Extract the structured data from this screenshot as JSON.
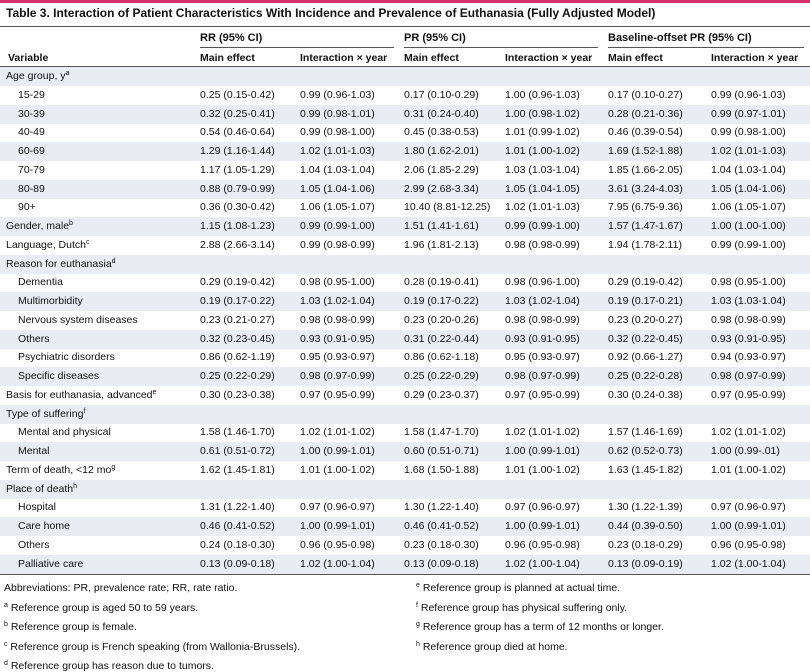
{
  "table": {
    "title": "Table 3. Interaction of Patient Characteristics With Incidence and Prevalence of Euthanasia (Fully Adjusted Model)",
    "variable_header": "Variable",
    "groups": [
      "RR (95% CI)",
      "PR (95% CI)",
      "Baseline-offset PR (95% CI)"
    ],
    "subheaders": [
      "Main effect",
      "Interaction × year",
      "Main effect",
      "Interaction × year",
      "Main effect",
      "Interaction × year"
    ],
    "rows": [
      {
        "label": "Age group, y",
        "note": "a",
        "rows": [
          {
            "label": "15-29",
            "cells": [
              "0.25 (0.15-0.42)",
              "0.99 (0.96-1.03)",
              "0.17 (0.10-0.29)",
              "1.00 (0.96-1.03)",
              "0.17 (0.10-0.27)",
              "0.99 (0.96-1.03)"
            ]
          },
          {
            "label": "30-39",
            "cells": [
              "0.32 (0.25-0.41)",
              "0.99 (0.98-1.01)",
              "0.31 (0.24-0.40)",
              "1.00 (0.98-1.02)",
              "0.28 (0.21-0.36)",
              "0.99 (0.97-1.01)"
            ]
          },
          {
            "label": "40-49",
            "cells": [
              "0.54 (0.46-0.64)",
              "0.99 (0.98-1.00)",
              "0.45 (0.38-0.53)",
              "1.01 (0.99-1.02)",
              "0.46 (0.39-0.54)",
              "0.99 (0.98-1.00)"
            ]
          },
          {
            "label": "60-69",
            "cells": [
              "1.29 (1.16-1.44)",
              "1.02 (1.01-1.03)",
              "1.80 (1.62-2.01)",
              "1.01 (1.00-1.02)",
              "1.69 (1.52-1.88)",
              "1.02 (1.01-1.03)"
            ]
          },
          {
            "label": "70-79",
            "cells": [
              "1.17 (1.05-1.29)",
              "1.04 (1.03-1.04)",
              "2.06 (1.85-2.29)",
              "1.03 (1.03-1.04)",
              "1.85 (1.66-2.05)",
              "1.04 (1.03-1.04)"
            ]
          },
          {
            "label": "80-89",
            "cells": [
              "0.88 (0.79-0.99)",
              "1.05 (1.04-1.06)",
              "2.99 (2.68-3.34)",
              "1.05 (1.04-1.05)",
              "3.61 (3.24-4.03)",
              "1.05 (1.04-1.06)"
            ]
          },
          {
            "label": "90+",
            "cells": [
              "0.36 (0.30-0.42)",
              "1.06 (1.05-1.07)",
              "10.40 (8.81-12.25)",
              "1.02 (1.01-1.03)",
              "7.95 (6.75-9.36)",
              "1.06 (1.05-1.07)"
            ]
          }
        ]
      },
      {
        "label": "Gender, male",
        "note": "b",
        "cells": [
          "1.15 (1.08-1.23)",
          "0.99 (0.99-1.00)",
          "1.51 (1.41-1.61)",
          "0.99 (0.99-1.00)",
          "1.57 (1.47-1.67)",
          "1.00 (1.00-1.00)"
        ]
      },
      {
        "label": "Language, Dutch",
        "note": "c",
        "cells": [
          "2.88 (2.66-3.14)",
          "0.99 (0.98-0.99)",
          "1.96 (1.81-2.13)",
          "0.98 (0.98-0.99)",
          "1.94 (1.78-2.11)",
          "0.99 (0.99-1.00)"
        ]
      },
      {
        "label": "Reason for euthanasia",
        "note": "d",
        "rows": [
          {
            "label": "Dementia",
            "cells": [
              "0.29 (0.19-0.42)",
              "0.98 (0.95-1.00)",
              "0.28 (0.19-0.41)",
              "0.98 (0.96-1.00)",
              "0.29 (0.19-0.42)",
              "0.98 (0.95-1.00)"
            ]
          },
          {
            "label": "Multimorbidity",
            "cells": [
              "0.19 (0.17-0.22)",
              "1.03 (1.02-1.04)",
              "0.19 (0.17-0.22)",
              "1.03 (1.02-1.04)",
              "0.19 (0.17-0.21)",
              "1.03 (1.03-1.04)"
            ]
          },
          {
            "label": "Nervous system diseases",
            "cells": [
              "0.23 (0.21-0.27)",
              "0.98 (0.98-0.99)",
              "0.23 (0.20-0.26)",
              "0.98 (0.98-0.99)",
              "0.23 (0.20-0.27)",
              "0.98 (0.98-0.99)"
            ]
          },
          {
            "label": "Others",
            "cells": [
              "0.32 (0.23-0.45)",
              "0.93 (0.91-0.95)",
              "0.31 (0.22-0.44)",
              "0.93 (0.91-0.95)",
              "0.32 (0.22-0.45)",
              "0.93 (0.91-0.95)"
            ]
          },
          {
            "label": "Psychiatric disorders",
            "cells": [
              "0.86 (0.62-1.19)",
              "0.95 (0.93-0.97)",
              "0.86 (0.62-1.18)",
              "0.95 (0.93-0.97)",
              "0.92 (0.66-1.27)",
              "0.94 (0.93-0.97)"
            ]
          },
          {
            "label": "Specific diseases",
            "cells": [
              "0.25 (0.22-0.29)",
              "0.98 (0.97-0.99)",
              "0.25 (0.22-0.29)",
              "0.98 (0.97-0.99)",
              "0.25 (0.22-0.28)",
              "0.98 (0.97-0.99)"
            ]
          }
        ]
      },
      {
        "label": "Basis for euthanasia, advanced",
        "note": "e",
        "cells": [
          "0.30 (0.23-0.38)",
          "0.97 (0.95-0.99)",
          "0.29 (0.23-0.37)",
          "0.97 (0.95-0.99)",
          "0.30 (0.24-0.38)",
          "0.97 (0.95-0.99)"
        ]
      },
      {
        "label": "Type of suffering",
        "note": "f",
        "rows": [
          {
            "label": "Mental and physical",
            "cells": [
              "1.58 (1.46-1.70)",
              "1.02 (1.01-1.02)",
              "1.58 (1.47-1.70)",
              "1.02 (1.01-1.02)",
              "1.57 (1.46-1.69)",
              "1.02 (1.01-1.02)"
            ]
          },
          {
            "label": "Mental",
            "cells": [
              "0.61 (0.51-0.72)",
              "1.00 (0.99-1.01)",
              "0.60 (0.51-0.71)",
              "1.00 (0.99-1.01)",
              "0.62 (0.52-0.73)",
              "1.00 (0.99-.01)"
            ]
          }
        ]
      },
      {
        "label": "Term of death, <12 mo",
        "note": "g",
        "cells": [
          "1.62 (1.45-1.81)",
          "1.01 (1.00-1.02)",
          "1.68 (1.50-1.88)",
          "1.01 (1.00-1.02)",
          "1.63 (1.45-1.82)",
          "1.01 (1.00-1.02)"
        ]
      },
      {
        "label": "Place of death",
        "note": "h",
        "rows": [
          {
            "label": "Hospital",
            "cells": [
              "1.31 (1.22-1.40)",
              "0.97 (0.96-0.97)",
              "1.30 (1.22-1.40)",
              "0.97 (0.96-0.97)",
              "1.30 (1.22-1.39)",
              "0.97 (0.96-0.97)"
            ]
          },
          {
            "label": "Care home",
            "cells": [
              "0.46 (0.41-0.52)",
              "1.00 (0.99-1.01)",
              "0.46 (0.41-0.52)",
              "1.00 (0.99-1.01)",
              "0.44 (0.39-0.50)",
              "1.00 (0.99-1.01)"
            ]
          },
          {
            "label": "Others",
            "cells": [
              "0.24 (0.18-0.30)",
              "0.96 (0.95-0.98)",
              "0.23 (0.18-0.30)",
              "0.96 (0.95-0.98)",
              "0.23 (0.18-0.29)",
              "0.96 (0.95-0.98)"
            ]
          },
          {
            "label": "Palliative care",
            "cells": [
              "0.13 (0.09-0.18)",
              "1.02 (1.00-1.04)",
              "0.13 (0.09-0.18)",
              "1.02 (1.00-1.04)",
              "0.13 (0.09-0.19)",
              "1.02 (1.00-1.04)"
            ]
          }
        ]
      }
    ]
  },
  "footnotes": {
    "abbreviations": "Abbreviations: PR, prevalence rate; RR, rate ratio.",
    "notes": [
      {
        "letter": "a",
        "text": "Reference group is aged 50 to 59 years."
      },
      {
        "letter": "b",
        "text": "Reference group is female."
      },
      {
        "letter": "c",
        "text": "Reference group is French speaking (from Wallonia-Brussels)."
      },
      {
        "letter": "d",
        "text": "Reference group has reason due to tumors."
      },
      {
        "letter": "e",
        "text": "Reference group is planned at actual time."
      },
      {
        "letter": "f",
        "text": "Reference group has physical suffering only."
      },
      {
        "letter": "g",
        "text": "Reference group has a term of 12 months or longer."
      },
      {
        "letter": "h",
        "text": "Reference group died at home."
      }
    ]
  }
}
